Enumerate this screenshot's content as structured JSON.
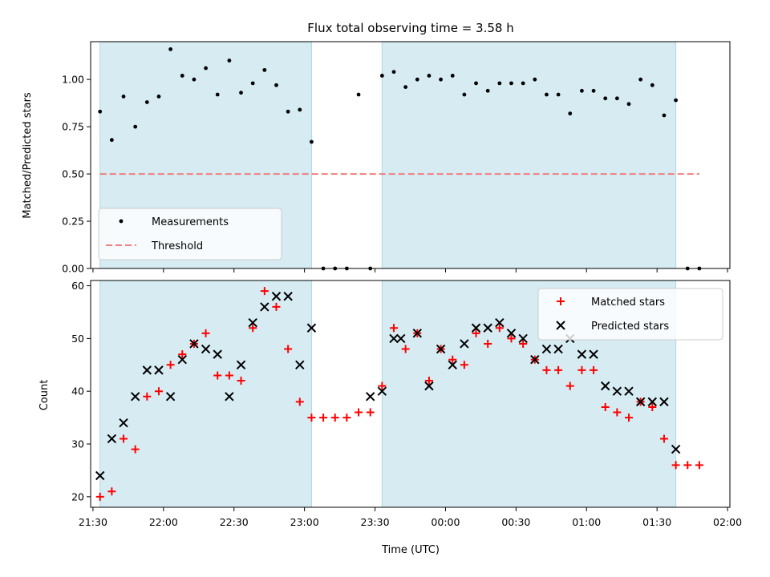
{
  "chart_data": [
    {
      "type": "scatter",
      "title": "Flux total observing time = 3.58 h",
      "xlabel": "",
      "ylabel": "Matched/Predicted stars",
      "ylim": [
        0,
        1.2
      ],
      "yticks": [
        "0.00",
        "0.25",
        "0.50",
        "0.75",
        "1.00"
      ],
      "ytick_values": [
        0,
        0.25,
        0.5,
        0.75,
        1.0
      ],
      "legend_position": "lower-left",
      "shaded_spans": [
        [
          "21:33",
          "23:03"
        ],
        [
          "23:33",
          "01:38"
        ]
      ],
      "series": [
        {
          "name": "Measurements",
          "marker": "dot",
          "color": "#000000",
          "x": [
            "21:33",
            "21:38",
            "21:43",
            "21:48",
            "21:53",
            "21:58",
            "22:03",
            "22:08",
            "22:13",
            "22:18",
            "22:23",
            "22:28",
            "22:33",
            "22:38",
            "22:43",
            "22:48",
            "22:53",
            "22:58",
            "23:03",
            "23:08",
            "23:13",
            "23:18",
            "23:28",
            "23:23",
            "23:33",
            "23:38",
            "23:43",
            "23:48",
            "23:53",
            "23:58",
            "00:03",
            "00:08",
            "00:13",
            "00:18",
            "00:23",
            "00:28",
            "00:33",
            "00:38",
            "00:43",
            "00:48",
            "00:53",
            "00:58",
            "01:03",
            "01:08",
            "01:13",
            "01:18",
            "01:23",
            "01:28",
            "01:33",
            "01:38",
            "01:43",
            "01:48"
          ],
          "y": [
            0.83,
            0.68,
            0.91,
            0.75,
            0.88,
            0.91,
            1.16,
            1.02,
            1.0,
            1.06,
            0.92,
            1.1,
            0.93,
            0.98,
            1.05,
            0.97,
            0.83,
            0.84,
            0.67,
            0.0,
            0.0,
            0.0,
            0.0,
            0.92,
            1.02,
            1.04,
            0.96,
            1.0,
            1.02,
            1.0,
            1.02,
            0.92,
            0.98,
            0.94,
            0.98,
            0.98,
            0.98,
            1.0,
            0.92,
            0.92,
            0.82,
            0.94,
            0.94,
            0.9,
            0.9,
            0.87,
            1.0,
            0.97,
            0.81,
            0.89,
            0.0,
            0.0
          ]
        },
        {
          "name": "Threshold",
          "marker": "dashed-line",
          "color": "#f08080",
          "x": [
            "21:33",
            "01:48"
          ],
          "y": [
            0.5,
            0.5
          ]
        }
      ]
    },
    {
      "type": "scatter",
      "title": "",
      "xlabel": "Time (UTC)",
      "ylabel": "Count",
      "ylim": [
        18,
        61
      ],
      "yticks": [
        "20",
        "30",
        "40",
        "50",
        "60"
      ],
      "ytick_values": [
        20,
        30,
        40,
        50,
        60
      ],
      "xticks": [
        "21:30",
        "22:00",
        "22:30",
        "23:00",
        "23:30",
        "00:00",
        "00:30",
        "01:00",
        "01:30",
        "02:00"
      ],
      "xlim": [
        "21:29",
        "02:01"
      ],
      "legend_position": "top-right",
      "shaded_spans": [
        [
          "21:33",
          "23:03"
        ],
        [
          "23:33",
          "01:38"
        ]
      ],
      "series": [
        {
          "name": "Matched stars",
          "marker": "plus",
          "color": "#ff0000",
          "x": [
            "21:33",
            "21:38",
            "21:43",
            "21:48",
            "21:53",
            "21:58",
            "22:03",
            "22:08",
            "22:13",
            "22:18",
            "22:23",
            "22:28",
            "22:33",
            "22:38",
            "22:43",
            "22:48",
            "22:53",
            "22:58",
            "23:03",
            "23:08",
            "23:13",
            "23:18",
            "23:23",
            "23:28",
            "23:33",
            "23:38",
            "23:43",
            "23:48",
            "23:53",
            "23:58",
            "00:03",
            "00:08",
            "00:13",
            "00:18",
            "00:23",
            "00:28",
            "00:33",
            "00:38",
            "00:43",
            "00:48",
            "00:53",
            "00:58",
            "01:03",
            "01:08",
            "01:13",
            "01:18",
            "01:23",
            "01:28",
            "01:33",
            "01:38",
            "01:43",
            "01:48"
          ],
          "y": [
            20,
            21,
            31,
            29,
            39,
            40,
            45,
            47,
            49,
            51,
            43,
            43,
            42,
            52,
            59,
            56,
            48,
            38,
            35,
            35,
            35,
            35,
            36,
            36,
            41,
            52,
            48,
            51,
            42,
            48,
            46,
            45,
            51,
            49,
            52,
            50,
            49,
            46,
            44,
            44,
            41,
            44,
            44,
            37,
            36,
            35,
            38,
            37,
            31,
            26,
            26,
            26
          ]
        },
        {
          "name": "Predicted stars",
          "marker": "x",
          "color": "#000000",
          "x": [
            "21:33",
            "21:38",
            "21:43",
            "21:48",
            "21:53",
            "21:58",
            "22:03",
            "22:08",
            "22:13",
            "22:18",
            "22:23",
            "22:28",
            "22:33",
            "22:38",
            "22:43",
            "22:48",
            "22:53",
            "22:58",
            "23:03",
            "23:28",
            "23:33",
            "23:38",
            "23:41",
            "23:48",
            "23:53",
            "23:58",
            "00:03",
            "00:08",
            "00:13",
            "00:18",
            "00:23",
            "00:28",
            "00:33",
            "00:38",
            "00:43",
            "00:48",
            "00:53",
            "00:58",
            "01:03",
            "01:08",
            "01:13",
            "01:18",
            "01:23",
            "01:28",
            "01:33",
            "01:38"
          ],
          "y": [
            24,
            31,
            34,
            39,
            44,
            44,
            39,
            46,
            49,
            48,
            47,
            39,
            45,
            53,
            56,
            58,
            58,
            45,
            52,
            39,
            40,
            50,
            50,
            51,
            41,
            48,
            45,
            49,
            52,
            52,
            53,
            51,
            50,
            46,
            48,
            48,
            50,
            47,
            47,
            41,
            40,
            40,
            38,
            38,
            38,
            29
          ]
        }
      ]
    }
  ]
}
